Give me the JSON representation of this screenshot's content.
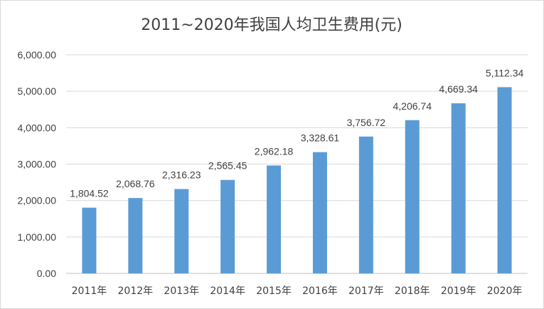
{
  "chart_data": {
    "type": "bar",
    "title": "2011~2020年我国人均卫生费用(元)",
    "categories": [
      "2011年",
      "2012年",
      "2013年",
      "2014年",
      "2015年",
      "2016年",
      "2017年",
      "2018年",
      "2019年",
      "2020年"
    ],
    "values": [
      1804.52,
      2068.76,
      2316.23,
      2565.45,
      2962.18,
      3328.61,
      3756.72,
      4206.74,
      4669.34,
      5112.34
    ],
    "data_labels": [
      "1,804.52",
      "2,068.76",
      "2,316.23",
      "2,565.45",
      "2,962.18",
      "3,328.61",
      "3,756.72",
      "4,206.74",
      "4,669.34",
      "5,112.34"
    ],
    "ylim": [
      0,
      6000
    ],
    "yticks": [
      0,
      1000,
      2000,
      3000,
      4000,
      5000,
      6000
    ],
    "ytick_labels": [
      "0.00",
      "1,000.00",
      "2,000.00",
      "3,000.00",
      "4,000.00",
      "5,000.00",
      "6,000.00"
    ],
    "xlabel": "",
    "ylabel": "",
    "grid": true,
    "legend": "none",
    "bar_color": "#5b9bd5"
  }
}
